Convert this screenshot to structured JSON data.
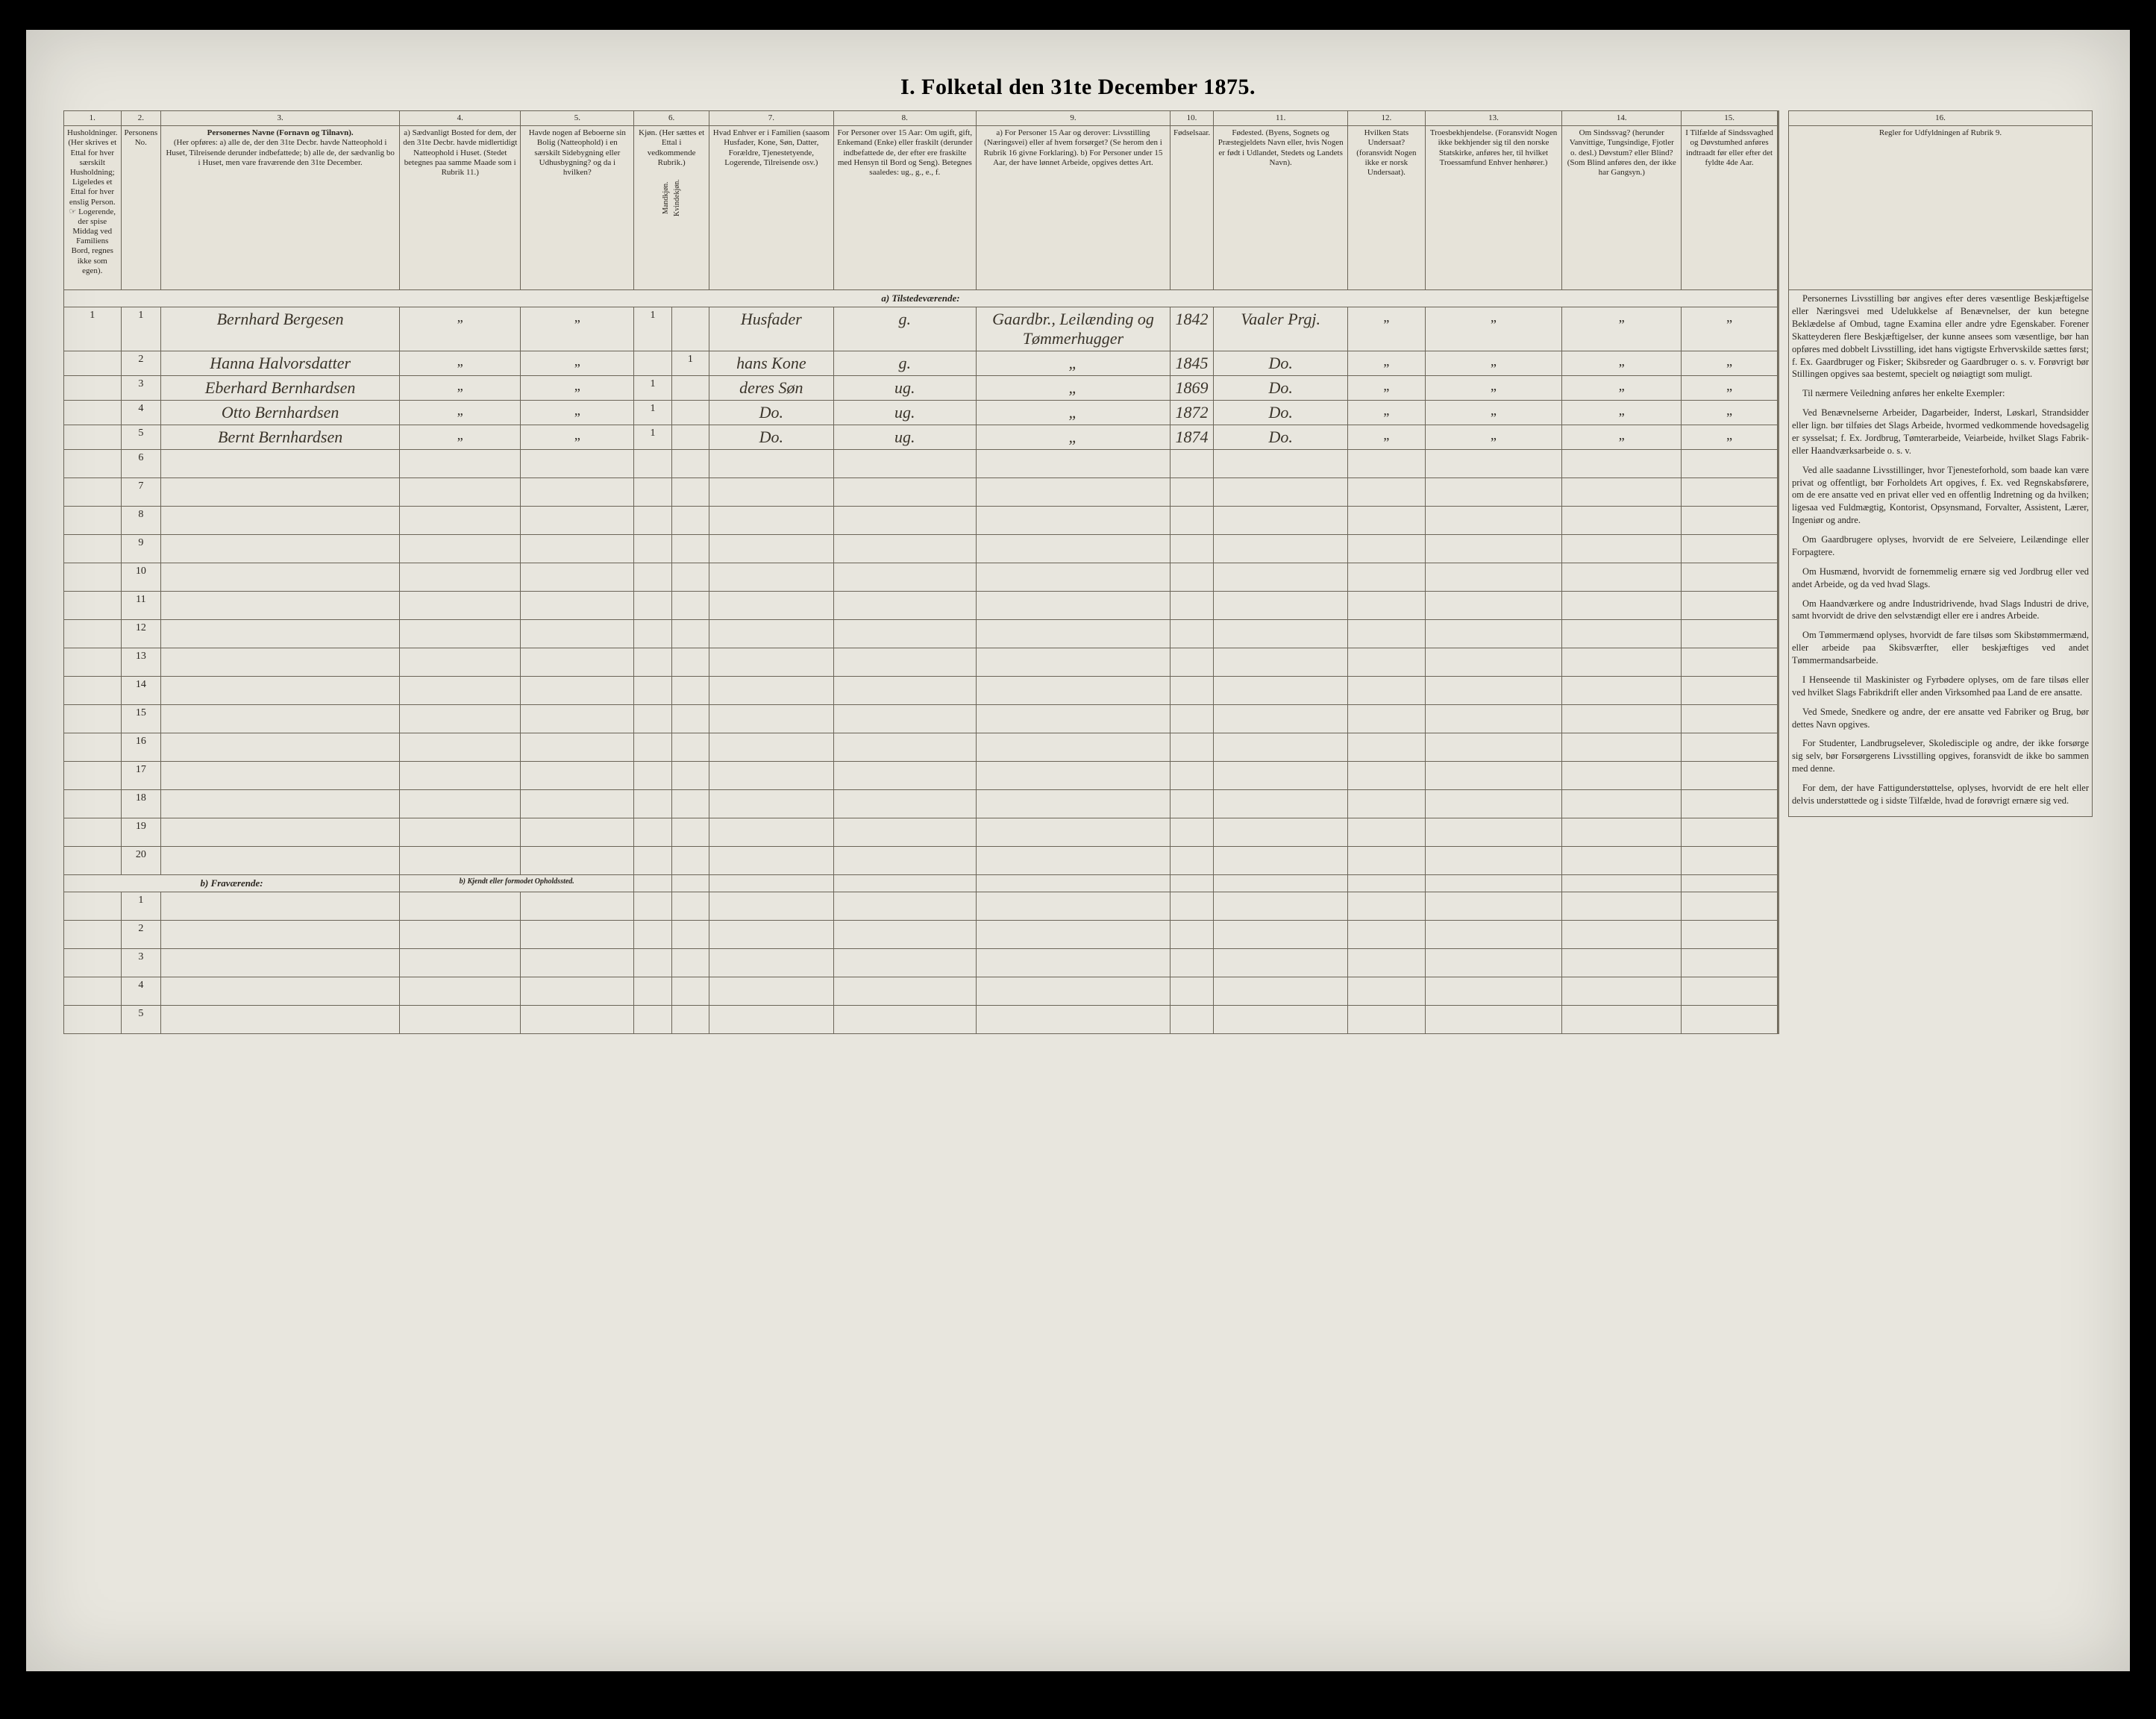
{
  "title": "I. Folketal den 31te December 1875.",
  "colnums": [
    "1.",
    "2.",
    "3.",
    "4.",
    "5.",
    "6.",
    "7.",
    "8.",
    "9.",
    "10.",
    "11.",
    "12.",
    "13.",
    "14.",
    "15.",
    "16."
  ],
  "headers": {
    "c1": "Husholdninger. (Her skrives et Ettal for hver særskilt Husholdning; Ligeledes et Ettal for hver enslig Person. ☞ Logerende, der spise Middag ved Familiens Bord, regnes ikke som egen).",
    "c2": "Personens No.",
    "c3_title": "Personernes Navne (Fornavn og Tilnavn).",
    "c3_sub": "(Her opføres: a) alle de, der den 31te Decbr. havde Natteophold i Huset, Tilreisende derunder indbefattede; b) alle de, der sædvanlig bo i Huset, men vare fraværende den 31te December.",
    "c4": "a) Sædvanligt Bosted for dem, der den 31te Decbr. havde midlertidigt Natteophold i Huset. (Stedet betegnes paa samme Maade som i Rubrik 11.)",
    "c5": "Havde nogen af Beboerne sin Bolig (Natteophold) i en særskilt Sidebygning eller Udhusbygning? og da i hvilken?",
    "c6": "Kjøn. (Her sættes et Ettal i vedkommende Rubrik.)",
    "c6a": "Mandkjøn.",
    "c6b": "Kvindekjøn.",
    "c7": "Hvad Enhver er i Familien (saasom Husfader, Kone, Søn, Datter, Forældre, Tjenestetyende, Logerende, Tilreisende osv.)",
    "c8": "For Personer over 15 Aar: Om ugift, gift, Enkemand (Enke) eller fraskilt (derunder indbefattede de, der efter ere fraskilte med Hensyn til Bord og Seng). Betegnes saaledes: ug., g., e., f.",
    "c9": "a) For Personer 15 Aar og derover: Livsstilling (Næringsvei) eller af hvem forsørget? (Se herom den i Rubrik 16 givne Forklaring). b) For Personer under 15 Aar, der have lønnet Arbeide, opgives dettes Art.",
    "c10": "Fødselsaar.",
    "c11": "Fødested. (Byens, Sognets og Præstegjeldets Navn eller, hvis Nogen er født i Udlandet, Stedets og Landets Navn).",
    "c12": "Hvilken Stats Undersaat? (foransvidt Nogen ikke er norsk Undersaat).",
    "c13": "Troesbekhjendelse. (Foransvidt Nogen ikke bekhjender sig til den norske Statskirke, anføres her, til hvilket Troessamfund Enhver henhører.)",
    "c14": "Om Sindssvag? (herunder Vanvittige, Tungsindige, Fjotler o. desl.) Døvstum? eller Blind? (Som Blind anføres den, der ikke har Gangsyn.)",
    "c15": "I Tilfælde af Sindssvaghed og Døvstumhed anføres indtraadt før eller efter det fyldte 4de Aar.",
    "c16_title": "Regler for Udfyldningen af Rubrik 9."
  },
  "section_a": "a) Tilstedeværende:",
  "section_b": "b) Fraværende:",
  "section_b_sub": "b) Kjendt eller formodet Opholdssted.",
  "rows": [
    {
      "n": "1",
      "hh": "1",
      "name": "Bernhard Bergesen",
      "sed": "„",
      "side": "„",
      "m": "1",
      "k": "",
      "fam": "Husfader",
      "civ": "g.",
      "occ": "Gaardbr., Leilænding og Tømmerhugger",
      "year": "1842",
      "place": "Vaaler Prgj.",
      "s12": "„",
      "s13": "„",
      "s14": "„",
      "s15": "„"
    },
    {
      "n": "2",
      "hh": "",
      "name": "Hanna Halvorsdatter",
      "sed": "„",
      "side": "„",
      "m": "",
      "k": "1",
      "fam": "hans Kone",
      "civ": "g.",
      "occ": "„",
      "year": "1845",
      "place": "Do.",
      "s12": "„",
      "s13": "„",
      "s14": "„",
      "s15": "„"
    },
    {
      "n": "3",
      "hh": "",
      "name": "Eberhard Bernhardsen",
      "sed": "„",
      "side": "„",
      "m": "1",
      "k": "",
      "fam": "deres Søn",
      "civ": "ug.",
      "occ": "„",
      "year": "1869",
      "place": "Do.",
      "s12": "„",
      "s13": "„",
      "s14": "„",
      "s15": "„"
    },
    {
      "n": "4",
      "hh": "",
      "name": "Otto Bernhardsen",
      "sed": "„",
      "side": "„",
      "m": "1",
      "k": "",
      "fam": "Do.",
      "civ": "ug.",
      "occ": "„",
      "year": "1872",
      "place": "Do.",
      "s12": "„",
      "s13": "„",
      "s14": "„",
      "s15": "„"
    },
    {
      "n": "5",
      "hh": "",
      "name": "Bernt Bernhardsen",
      "sed": "„",
      "side": "„",
      "m": "1",
      "k": "",
      "fam": "Do.",
      "civ": "ug.",
      "occ": "„",
      "year": "1874",
      "place": "Do.",
      "s12": "„",
      "s13": "„",
      "s14": "„",
      "s15": "„"
    }
  ],
  "blank_a": [
    "6",
    "7",
    "8",
    "9",
    "10",
    "11",
    "12",
    "13",
    "14",
    "15",
    "16",
    "17",
    "18",
    "19",
    "20"
  ],
  "blank_b": [
    "1",
    "2",
    "3",
    "4",
    "5"
  ],
  "rubrik": {
    "p1": "Personernes Livsstilling bør angives efter deres væsentlige Beskjæftigelse eller Næringsvei med Udelukkelse af Benævnelser, der kun betegne Beklædelse af Ombud, tagne Examina eller andre ydre Egenskaber. Forener Skatteyderen flere Beskjæftigelser, der kunne ansees som væsentlige, bør han opføres med dobbelt Livsstilling, idet hans vigtigste Erhvervskilde sættes først; f. Ex. Gaardbruger og Fisker; Skibsreder og Gaardbruger o. s. v. Forøvrigt bør Stillingen opgives saa bestemt, specielt og nøiagtigt som muligt.",
    "p2": "Til nærmere Veiledning anføres her enkelte Exempler:",
    "p3": "Ved Benævnelserne Arbeider, Dagarbeider, Inderst, Løskarl, Strandsidder eller lign. bør tilføies det Slags Arbeide, hvormed vedkommende hovedsagelig er sysselsat; f. Ex. Jordbrug, Tømterarbeide, Veiarbeide, hvilket Slags Fabrik- eller Haandværksarbeide o. s. v.",
    "p4": "Ved alle saadanne Livsstillinger, hvor Tjenesteforhold, som baade kan være privat og offentligt, bør Forholdets Art opgives, f. Ex. ved Regnskabsførere, om de ere ansatte ved en privat eller ved en offentlig Indretning og da hvilken; ligesaa ved Fuldmægtig, Kontorist, Opsynsmand, Forvalter, Assistent, Lærer, Ingeniør og andre.",
    "p5": "Om Gaardbrugere oplyses, hvorvidt de ere Selveiere, Leilændinge eller Forpagtere.",
    "p6": "Om Husmænd, hvorvidt de fornemmelig ernære sig ved Jordbrug eller ved andet Arbeide, og da ved hvad Slags.",
    "p7": "Om Haandværkere og andre Industridrivende, hvad Slags Industri de drive, samt hvorvidt de drive den selvstændigt eller ere i andres Arbeide.",
    "p8": "Om Tømmermænd oplyses, hvorvidt de fare tilsøs som Skibstømmermænd, eller arbeide paa Skibsværfter, eller beskjæftiges ved andet Tømmermandsarbeide.",
    "p9": "I Henseende til Maskinister og Fyrbødere oplyses, om de fare tilsøs eller ved hvilket Slags Fabrikdrift eller anden Virksomhed paa Land de ere ansatte.",
    "p10": "Ved Smede, Snedkere og andre, der ere ansatte ved Fabriker og Brug, bør dettes Navn opgives.",
    "p11": "For Studenter, Landbrugselever, Skoledisciple og andre, der ikke forsørge sig selv, bør Forsørgerens Livsstilling opgives, foransvidt de ikke bo sammen med denne.",
    "p12": "For dem, der have Fattigunderstøttelse, oplyses, hvorvidt de ere helt eller delvis understøttede og i sidste Tilfælde, hvad de forøvrigt ernære sig ved."
  }
}
